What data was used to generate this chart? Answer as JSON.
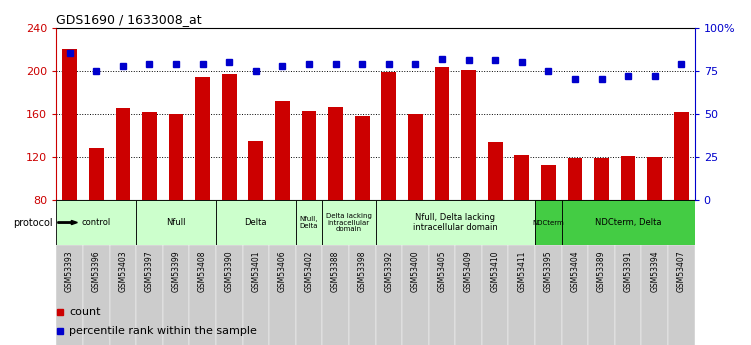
{
  "title": "GDS1690 / 1633008_at",
  "samples": [
    "GSM53393",
    "GSM53396",
    "GSM53403",
    "GSM53397",
    "GSM53399",
    "GSM53408",
    "GSM53390",
    "GSM53401",
    "GSM53406",
    "GSM53402",
    "GSM53388",
    "GSM53398",
    "GSM53392",
    "GSM53400",
    "GSM53405",
    "GSM53409",
    "GSM53410",
    "GSM53411",
    "GSM53395",
    "GSM53404",
    "GSM53389",
    "GSM53391",
    "GSM53394",
    "GSM53407"
  ],
  "bar_values": [
    220,
    128,
    165,
    162,
    160,
    194,
    197,
    135,
    172,
    163,
    166,
    158,
    199,
    160,
    203,
    201,
    134,
    122,
    113,
    119,
    119,
    121,
    120,
    162
  ],
  "dot_values": [
    85,
    75,
    78,
    79,
    79,
    79,
    80,
    75,
    78,
    79,
    79,
    79,
    79,
    79,
    82,
    81,
    81,
    80,
    75,
    70,
    70,
    72,
    72,
    79
  ],
  "ylim_left": [
    80,
    240
  ],
  "ylim_right": [
    0,
    100
  ],
  "yticks_left": [
    80,
    120,
    160,
    200,
    240
  ],
  "yticks_right": [
    0,
    25,
    50,
    75,
    100
  ],
  "ytick_labels_right": [
    "0",
    "25",
    "50",
    "75",
    "100%"
  ],
  "bar_color": "#cc0000",
  "dot_color": "#0000cc",
  "protocol_groups": [
    {
      "label": "control",
      "start": 0,
      "end": 2,
      "color": "#ccffcc"
    },
    {
      "label": "Nfull",
      "start": 3,
      "end": 5,
      "color": "#ccffcc"
    },
    {
      "label": "Delta",
      "start": 6,
      "end": 8,
      "color": "#ccffcc"
    },
    {
      "label": "Nfull,\nDelta",
      "start": 9,
      "end": 9,
      "color": "#ccffcc"
    },
    {
      "label": "Delta lacking\nintracellular\ndomain",
      "start": 10,
      "end": 11,
      "color": "#ccffcc"
    },
    {
      "label": "Nfull, Delta lacking\nintracellular domain",
      "start": 12,
      "end": 17,
      "color": "#ccffcc"
    },
    {
      "label": "NDCterm",
      "start": 18,
      "end": 18,
      "color": "#44cc44"
    },
    {
      "label": "NDCterm, Delta",
      "start": 19,
      "end": 23,
      "color": "#44cc44"
    }
  ],
  "legend_count": "count",
  "legend_pct": "percentile rank within the sample",
  "left_axis_color": "#cc0000",
  "right_axis_color": "#0000cc",
  "tick_bg": "#cccccc",
  "protocol_label": "protocol"
}
